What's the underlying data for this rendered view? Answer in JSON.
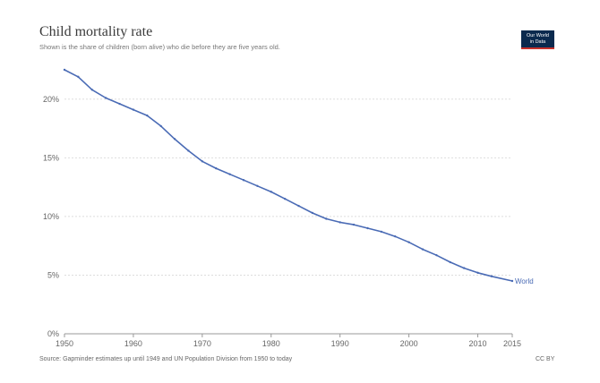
{
  "header": {
    "title": "Child mortality rate",
    "subtitle": "Shown is the share of children (born alive) who die before they are five years old."
  },
  "logo": {
    "line1": "Our World",
    "line2": "in Data",
    "bg_color": "#0b2a4e",
    "accent_color": "#c7332d"
  },
  "footer": {
    "source": "Source: Gapminder estimates up until 1949 and UN Population Division from 1950 to today",
    "license": "CC BY"
  },
  "chart_data": {
    "type": "line",
    "title": "Child mortality rate",
    "subtitle": "Shown is the share of children (born alive) who die before they are five years old.",
    "xlabel": "",
    "ylabel": "",
    "xlim": [
      1950,
      2015
    ],
    "ylim": [
      0,
      22.5
    ],
    "x_ticks": [
      "1950",
      "1960",
      "1970",
      "1980",
      "1990",
      "2000",
      "2010",
      "2015"
    ],
    "y_ticks": [
      "0%",
      "5%",
      "10%",
      "15%",
      "20%"
    ],
    "y_tick_values": [
      0,
      5,
      10,
      15,
      20
    ],
    "x_tick_values": [
      1950,
      1960,
      1970,
      1980,
      1990,
      2000,
      2010,
      2015
    ],
    "grid": true,
    "line_color": "#4a6bb5",
    "series": [
      {
        "name": "World",
        "x": [
          1950,
          1952,
          1954,
          1956,
          1958,
          1960,
          1962,
          1964,
          1966,
          1968,
          1970,
          1972,
          1974,
          1976,
          1978,
          1980,
          1982,
          1984,
          1986,
          1988,
          1990,
          1992,
          1994,
          1996,
          1998,
          2000,
          2002,
          2004,
          2006,
          2008,
          2010,
          2012,
          2015
        ],
        "values": [
          22.5,
          21.9,
          20.8,
          20.1,
          19.6,
          19.1,
          18.6,
          17.7,
          16.6,
          15.6,
          14.7,
          14.1,
          13.6,
          13.1,
          12.6,
          12.1,
          11.5,
          10.9,
          10.3,
          9.8,
          9.5,
          9.3,
          9.0,
          8.7,
          8.3,
          7.8,
          7.2,
          6.7,
          6.1,
          5.6,
          5.2,
          4.9,
          4.5
        ]
      }
    ]
  }
}
